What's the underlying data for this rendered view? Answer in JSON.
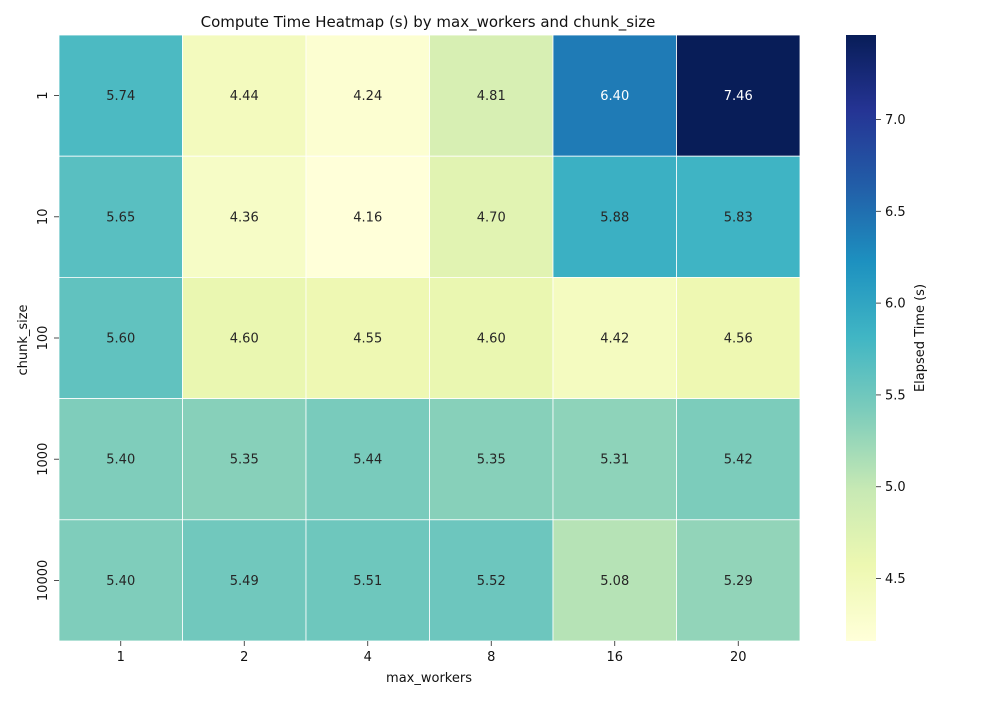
{
  "chart_data": {
    "type": "heatmap",
    "title": "Compute Time Heatmap (s) by max_workers and chunk_size",
    "xlabel": "max_workers",
    "ylabel": "chunk_size",
    "x_categories": [
      "1",
      "2",
      "4",
      "8",
      "16",
      "20"
    ],
    "y_categories": [
      "1",
      "10",
      "100",
      "1000",
      "10000"
    ],
    "values": [
      [
        5.74,
        4.44,
        4.24,
        4.81,
        6.4,
        7.46
      ],
      [
        5.65,
        4.36,
        4.16,
        4.7,
        5.88,
        5.83
      ],
      [
        5.6,
        4.6,
        4.55,
        4.6,
        4.42,
        4.56
      ],
      [
        5.4,
        5.35,
        5.44,
        5.35,
        5.31,
        5.42
      ],
      [
        5.4,
        5.49,
        5.51,
        5.52,
        5.08,
        5.29
      ]
    ],
    "value_format": "2 decimals",
    "colorbar": {
      "label": "Elapsed Time (s)",
      "min": 4.16,
      "max": 7.46,
      "ticks": [
        "4.5",
        "5.0",
        "5.5",
        "6.0",
        "6.5",
        "7.0"
      ],
      "colormap": "YlGnBu"
    },
    "grid": false,
    "legend": "colorbar-right"
  }
}
